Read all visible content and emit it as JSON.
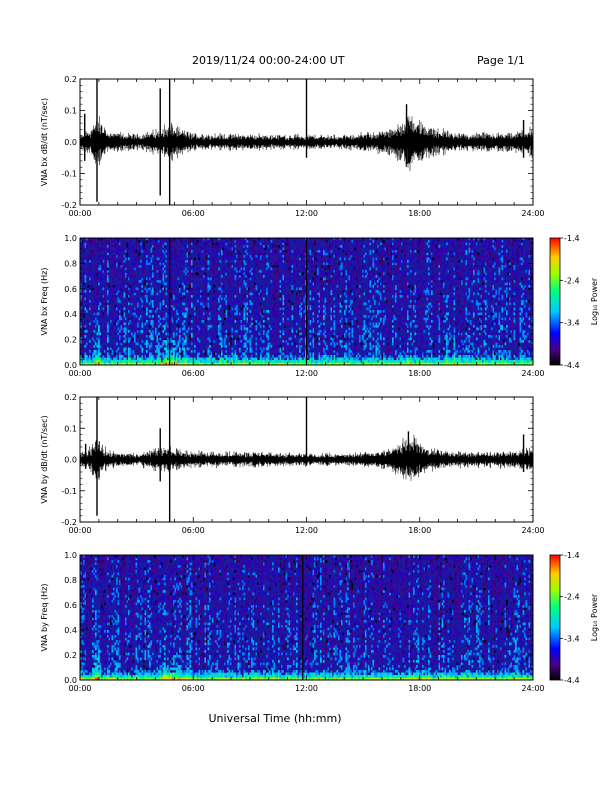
{
  "header": {
    "title": "2019/11/24  00:00-24:00 UT",
    "page": "Page 1/1"
  },
  "chart_data": [
    {
      "type": "line",
      "title": "",
      "xlabel": "",
      "ylabel": "VNA bx dB/dt (nT/sec)",
      "xlim": [
        0,
        24
      ],
      "ylim": [
        -0.2,
        0.2
      ],
      "x_ticks": [
        "00:00",
        "06:00",
        "12:00",
        "18:00",
        "24:00"
      ],
      "y_ticks": [
        "-0.2",
        "-0.1",
        "0.0",
        "0.1",
        "0.2"
      ],
      "baseline": 0.0,
      "noise_amplitude": 0.012,
      "envelope": [
        [
          0.0,
          0.016
        ],
        [
          0.5,
          0.03
        ],
        [
          1.0,
          0.06
        ],
        [
          1.5,
          0.024
        ],
        [
          3.0,
          0.018
        ],
        [
          4.2,
          0.03
        ],
        [
          4.8,
          0.045
        ],
        [
          5.3,
          0.03
        ],
        [
          6.0,
          0.02
        ],
        [
          10.0,
          0.018
        ],
        [
          14.0,
          0.016
        ],
        [
          16.5,
          0.03
        ],
        [
          17.5,
          0.07
        ],
        [
          18.3,
          0.04
        ],
        [
          20.0,
          0.02
        ],
        [
          23.0,
          0.022
        ],
        [
          24.0,
          0.035
        ]
      ],
      "spikes": [
        {
          "x": 0.25,
          "min": -0.06,
          "max": 0.09
        },
        {
          "x": 0.9,
          "min": -0.19,
          "max": 0.2
        },
        {
          "x": 4.25,
          "min": -0.17,
          "max": 0.17
        },
        {
          "x": 4.75,
          "min": -0.2,
          "max": 0.2
        },
        {
          "x": 12.0,
          "min": -0.05,
          "max": 0.2
        },
        {
          "x": 17.3,
          "min": -0.07,
          "max": 0.12
        },
        {
          "x": 23.5,
          "min": -0.05,
          "max": 0.07
        }
      ]
    },
    {
      "type": "heatmap",
      "title": "",
      "xlabel": "",
      "ylabel": "VNA bx Freq (Hz)",
      "xlim": [
        0,
        24
      ],
      "ylim": [
        0,
        1
      ],
      "x_ticks": [
        "00:00",
        "06:00",
        "12:00",
        "18:00",
        "24:00"
      ],
      "y_ticks": [
        "0.0",
        "0.2",
        "0.4",
        "0.6",
        "0.8",
        "1.0"
      ],
      "colorbar": {
        "label": "Log₁₀ Power",
        "ticks": [
          "-4.4",
          "-3.4",
          "-2.4",
          "-1.4"
        ],
        "range": [
          -4.4,
          -1.4
        ]
      },
      "features": [
        {
          "x": 0.9,
          "fmax": 0.45,
          "boost": 1.0
        },
        {
          "x": 4.8,
          "fmax": 0.3,
          "boost": 0.9
        },
        {
          "x": 17.5,
          "fmax": 0.1,
          "boost": 0.6
        },
        {
          "x": 19.8,
          "fmax": 0.25,
          "boost": 0.3
        }
      ],
      "dark_lines": [
        4.75,
        12.0
      ]
    },
    {
      "type": "line",
      "title": "",
      "xlabel": "",
      "ylabel": "VNA by dB/dt (nT/sec)",
      "xlim": [
        0,
        24
      ],
      "ylim": [
        -0.2,
        0.2
      ],
      "x_ticks": [
        "00:00",
        "06:00",
        "12:00",
        "18:00",
        "24:00"
      ],
      "y_ticks": [
        "-0.2",
        "-0.1",
        "0.0",
        "0.1",
        "0.2"
      ],
      "baseline": 0.0,
      "noise_amplitude": 0.01,
      "envelope": [
        [
          0.0,
          0.014
        ],
        [
          0.5,
          0.03
        ],
        [
          1.0,
          0.05
        ],
        [
          1.5,
          0.02
        ],
        [
          3.0,
          0.014
        ],
        [
          4.2,
          0.03
        ],
        [
          4.8,
          0.03
        ],
        [
          5.5,
          0.02
        ],
        [
          10.0,
          0.016
        ],
        [
          14.0,
          0.014
        ],
        [
          16.5,
          0.025
        ],
        [
          17.5,
          0.06
        ],
        [
          18.3,
          0.03
        ],
        [
          20.0,
          0.018
        ],
        [
          23.0,
          0.02
        ],
        [
          24.0,
          0.03
        ]
      ],
      "spikes": [
        {
          "x": 0.3,
          "min": -0.03,
          "max": 0.05
        },
        {
          "x": 0.9,
          "min": -0.18,
          "max": 0.2
        },
        {
          "x": 4.25,
          "min": -0.07,
          "max": 0.1
        },
        {
          "x": 4.75,
          "min": -0.2,
          "max": 0.2
        },
        {
          "x": 12.0,
          "min": -0.02,
          "max": 0.2
        },
        {
          "x": 17.4,
          "min": -0.05,
          "max": 0.09
        },
        {
          "x": 23.5,
          "min": -0.04,
          "max": 0.08
        }
      ]
    },
    {
      "type": "heatmap",
      "title": "",
      "xlabel": "Universal Time (hh:mm)",
      "ylabel": "VNA by Freq (Hz)",
      "xlim": [
        0,
        24
      ],
      "ylim": [
        0,
        1
      ],
      "x_ticks": [
        "00:00",
        "06:00",
        "12:00",
        "18:00",
        "24:00"
      ],
      "y_ticks": [
        "0.0",
        "0.2",
        "0.4",
        "0.6",
        "0.8",
        "1.0"
      ],
      "colorbar": {
        "label": "Log₁₀ Power",
        "ticks": [
          "-4.4",
          "-3.4",
          "-2.4",
          "-1.4"
        ],
        "range": [
          -4.4,
          -1.4
        ]
      },
      "features": [
        {
          "x": 0.9,
          "fmax": 0.35,
          "boost": 1.0
        },
        {
          "x": 4.8,
          "fmax": 0.2,
          "boost": 0.8
        },
        {
          "x": 17.5,
          "fmax": 0.08,
          "boost": 0.4
        },
        {
          "x": 19.8,
          "fmax": 0.2,
          "boost": 0.25
        }
      ],
      "dark_lines": [
        11.8
      ]
    }
  ]
}
